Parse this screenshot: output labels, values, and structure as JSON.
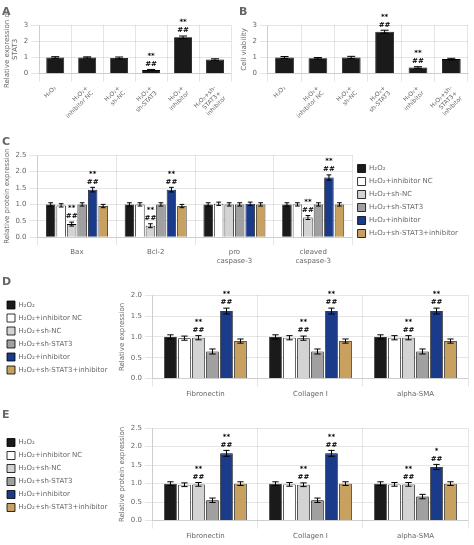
{
  "chart_data": [
    {
      "type": "bar",
      "title": "A",
      "categories": [
        "H₂O₂",
        "H₂O₂+\ninhibitor NC",
        "H₂O₂+\nsh-NC",
        "H₂O₂+\nsh-STAT3",
        "H₂O₂+\ninhibitor",
        "H₂O₂+sh-\nSTAT3+\ninhibitor"
      ],
      "values": [
        1.0,
        1.0,
        0.97,
        0.22,
        2.25,
        0.87
      ],
      "errors": [
        0.05,
        0.04,
        0.06,
        0.04,
        0.08,
        0.05
      ],
      "color": "#1a1a1a",
      "ylabel": "Relative expression of\nSTAT3",
      "ylim": [
        0,
        3.0
      ],
      "yticks": [
        0,
        1,
        2,
        3
      ],
      "grid": true,
      "annotations": [
        {
          "category": "H₂O₂+\nsh-STAT3",
          "text": [
            "**",
            "##"
          ]
        },
        {
          "category": "H₂O₂+\ninhibitor",
          "text": [
            "**",
            "##"
          ]
        }
      ]
    },
    {
      "type": "bar",
      "title": "B",
      "categories": [
        "H₂O₂",
        "H₂O₂+\ninhibitor NC",
        "H₂O₂+\nsh-NC",
        "H₂O₂+\nsh-STAT3",
        "H₂O₂+\ninhibitor",
        "H₂O₂+sh-\nSTAT3+\ninhibitor"
      ],
      "values": [
        1.0,
        0.95,
        1.0,
        2.6,
        0.38,
        0.9
      ],
      "errors": [
        0.06,
        0.05,
        0.07,
        0.09,
        0.05,
        0.05
      ],
      "color": "#1a1a1a",
      "ylabel": "Cell viability",
      "ylim": [
        0,
        3.0
      ],
      "yticks": [
        0,
        1,
        2,
        3
      ],
      "grid": true,
      "annotations": [
        {
          "category": "H₂O₂+\nsh-STAT3",
          "text": [
            "**",
            "##"
          ]
        },
        {
          "category": "H₂O₂+\ninhibitor",
          "text": [
            "**",
            "##"
          ]
        }
      ]
    },
    {
      "type": "bar",
      "title": "C",
      "categories": [
        "Bax",
        "Bcl-2",
        "pro\ncaspase-3",
        "cleaved\ncaspase-3"
      ],
      "series": [
        {
          "name": "H₂O₂",
          "color": "#1a1a1a",
          "values": [
            1.0,
            1.0,
            1.0,
            1.0
          ],
          "errors": [
            0.05,
            0.05,
            0.05,
            0.05
          ]
        },
        {
          "name": "H₂O₂+inhibitor NC",
          "color": "#ffffff",
          "values": [
            0.97,
            1.0,
            1.02,
            1.0
          ],
          "errors": [
            0.05,
            0.05,
            0.05,
            0.05
          ]
        },
        {
          "name": "H₂O₂+sh-NC",
          "color": "#d3d3d3",
          "values": [
            0.4,
            0.35,
            1.0,
            0.6
          ],
          "errors": [
            0.06,
            0.06,
            0.05,
            0.06
          ]
        },
        {
          "name": "H₂O₂+sh-STAT3",
          "color": "#a0a0a0",
          "values": [
            1.0,
            1.0,
            1.0,
            1.0
          ],
          "errors": [
            0.05,
            0.05,
            0.05,
            0.05
          ]
        },
        {
          "name": "H₂O₂+inhibitor",
          "color": "#1a3a8a",
          "values": [
            1.45,
            1.45,
            1.02,
            1.82
          ],
          "errors": [
            0.07,
            0.07,
            0.05,
            0.08
          ]
        },
        {
          "name": "H₂O₂+sh-STAT3+inhibitor",
          "color": "#c8a060",
          "values": [
            0.95,
            0.95,
            1.0,
            1.0
          ],
          "errors": [
            0.05,
            0.05,
            0.05,
            0.05
          ]
        }
      ],
      "ylabel": "Relative protein expression",
      "ylim": [
        0,
        2.5
      ],
      "yticks": [
        {
          "value": 0,
          "label": "0.0"
        },
        {
          "value": 0.5,
          "label": "0.5"
        },
        {
          "value": 1.0,
          "label": "1.0"
        },
        {
          "value": 1.5,
          "label": "1.5"
        },
        {
          "value": 2.0,
          "label": "2.0"
        },
        {
          "value": 2.5,
          "label": "2.5"
        }
      ],
      "grid": true,
      "legend": "right",
      "annotations": [
        {
          "category": "Bax",
          "series": "H₂O₂+sh-NC",
          "text": [
            "**",
            "##"
          ]
        },
        {
          "category": "Bax",
          "series": "H₂O₂+inhibitor",
          "text": [
            "**",
            "##"
          ]
        },
        {
          "category": "Bcl-2",
          "series": "H₂O₂+sh-NC",
          "text": [
            "**",
            "##"
          ]
        },
        {
          "category": "Bcl-2",
          "series": "H₂O₂+inhibitor",
          "text": [
            "**",
            "##"
          ]
        },
        {
          "category": "cleaved\ncaspase-3",
          "series": "H₂O₂+sh-NC",
          "text": [
            "**",
            "##"
          ]
        },
        {
          "category": "cleaved\ncaspase-3",
          "series": "H₂O₂+inhibitor",
          "text": [
            "**",
            "##"
          ]
        }
      ]
    },
    {
      "type": "bar",
      "title": "D",
      "categories": [
        "Fibronectin",
        "Collagen I",
        "alpha-SMA"
      ],
      "series": [
        {
          "name": "H₂O₂",
          "color": "#1a1a1a",
          "values": [
            1.0,
            1.0,
            1.0
          ],
          "errors": [
            0.05,
            0.05,
            0.05
          ]
        },
        {
          "name": "H₂O₂+inhibitor NC",
          "color": "#ffffff",
          "values": [
            0.97,
            0.98,
            0.98
          ],
          "errors": [
            0.05,
            0.05,
            0.05
          ]
        },
        {
          "name": "H₂O₂+sh-NC",
          "color": "#d3d3d3",
          "values": [
            0.98,
            0.97,
            0.98
          ],
          "errors": [
            0.05,
            0.05,
            0.05
          ]
        },
        {
          "name": "H₂O₂+sh-STAT3",
          "color": "#a0a0a0",
          "values": [
            0.65,
            0.65,
            0.65
          ],
          "errors": [
            0.06,
            0.06,
            0.06
          ]
        },
        {
          "name": "H₂O₂+inhibitor",
          "color": "#1a3a8a",
          "values": [
            1.62,
            1.62,
            1.62
          ],
          "errors": [
            0.07,
            0.07,
            0.07
          ]
        },
        {
          "name": "H₂O₂+sh-STAT3+inhibitor",
          "color": "#c8a060",
          "values": [
            0.9,
            0.9,
            0.9
          ],
          "errors": [
            0.05,
            0.05,
            0.05
          ]
        }
      ],
      "ylabel": "Relative expression",
      "ylim": [
        0,
        2.0
      ],
      "yticks": [
        {
          "value": 0,
          "label": "0.0"
        },
        {
          "value": 0.5,
          "label": "0.5"
        },
        {
          "value": 1.0,
          "label": "1.0"
        },
        {
          "value": 1.5,
          "label": "1.5"
        },
        {
          "value": 2.0,
          "label": "2.0"
        }
      ],
      "grid": true,
      "legend": "left",
      "annotations": [
        {
          "category": "Fibronectin",
          "series": "H₂O₂+sh-NC",
          "text": [
            "**",
            "##"
          ]
        },
        {
          "category": "Fibronectin",
          "series": "H₂O₂+inhibitor",
          "text": [
            "**",
            "##"
          ]
        },
        {
          "category": "Collagen I",
          "series": "H₂O₂+sh-NC",
          "text": [
            "**",
            "##"
          ]
        },
        {
          "category": "Collagen I",
          "series": "H₂O₂+inhibitor",
          "text": [
            "**",
            "##"
          ]
        },
        {
          "category": "alpha-SMA",
          "series": "H₂O₂+sh-NC",
          "text": [
            "**",
            "##"
          ]
        },
        {
          "category": "alpha-SMA",
          "series": "H₂O₂+inhibitor",
          "text": [
            "**",
            "##"
          ]
        }
      ]
    },
    {
      "type": "bar",
      "title": "E",
      "categories": [
        "Fibronectin",
        "Collagen I",
        "alpha-SMA"
      ],
      "series": [
        {
          "name": "H₂O₂",
          "color": "#1a1a1a",
          "values": [
            1.0,
            1.0,
            1.0
          ],
          "errors": [
            0.05,
            0.05,
            0.05
          ]
        },
        {
          "name": "H₂O₂+inhibitor NC",
          "color": "#ffffff",
          "values": [
            0.97,
            0.98,
            0.98
          ],
          "errors": [
            0.05,
            0.05,
            0.05
          ]
        },
        {
          "name": "H₂O₂+sh-NC",
          "color": "#d3d3d3",
          "values": [
            0.98,
            0.97,
            0.98
          ],
          "errors": [
            0.05,
            0.05,
            0.05
          ]
        },
        {
          "name": "H₂O₂+sh-STAT3",
          "color": "#a0a0a0",
          "values": [
            0.55,
            0.55,
            0.65
          ],
          "errors": [
            0.06,
            0.06,
            0.06
          ]
        },
        {
          "name": "H₂O₂+inhibitor",
          "color": "#1a3a8a",
          "values": [
            1.82,
            1.82,
            1.45
          ],
          "errors": [
            0.08,
            0.08,
            0.07
          ]
        },
        {
          "name": "H₂O₂+sh-STAT3+inhibitor",
          "color": "#c8a060",
          "values": [
            1.0,
            1.0,
            1.0
          ],
          "errors": [
            0.05,
            0.05,
            0.05
          ]
        }
      ],
      "ylabel": "Relative protein expression",
      "ylim": [
        0,
        2.5
      ],
      "yticks": [
        {
          "value": 0,
          "label": "0.0"
        },
        {
          "value": 0.5,
          "label": "0.5"
        },
        {
          "value": 1.0,
          "label": "1.0"
        },
        {
          "value": 1.5,
          "label": "1.5"
        },
        {
          "value": 2.0,
          "label": "2.0"
        },
        {
          "value": 2.5,
          "label": "2.5"
        }
      ],
      "grid": true,
      "legend": "left",
      "annotations": [
        {
          "category": "Fibronectin",
          "series": "H₂O₂+sh-NC",
          "text": [
            "**",
            "##"
          ]
        },
        {
          "category": "Fibronectin",
          "series": "H₂O₂+inhibitor",
          "text": [
            "**",
            "##"
          ]
        },
        {
          "category": "Collagen I",
          "series": "H₂O₂+sh-NC",
          "text": [
            "**",
            "##"
          ]
        },
        {
          "category": "Collagen I",
          "series": "H₂O₂+inhibitor",
          "text": [
            "**",
            "##"
          ]
        },
        {
          "category": "alpha-SMA",
          "series": "H₂O₂+sh-NC",
          "text": [
            "**",
            "##"
          ]
        },
        {
          "category": "alpha-SMA",
          "series": "H₂O₂+inhibitor",
          "text": [
            "*",
            "##"
          ]
        }
      ]
    }
  ]
}
